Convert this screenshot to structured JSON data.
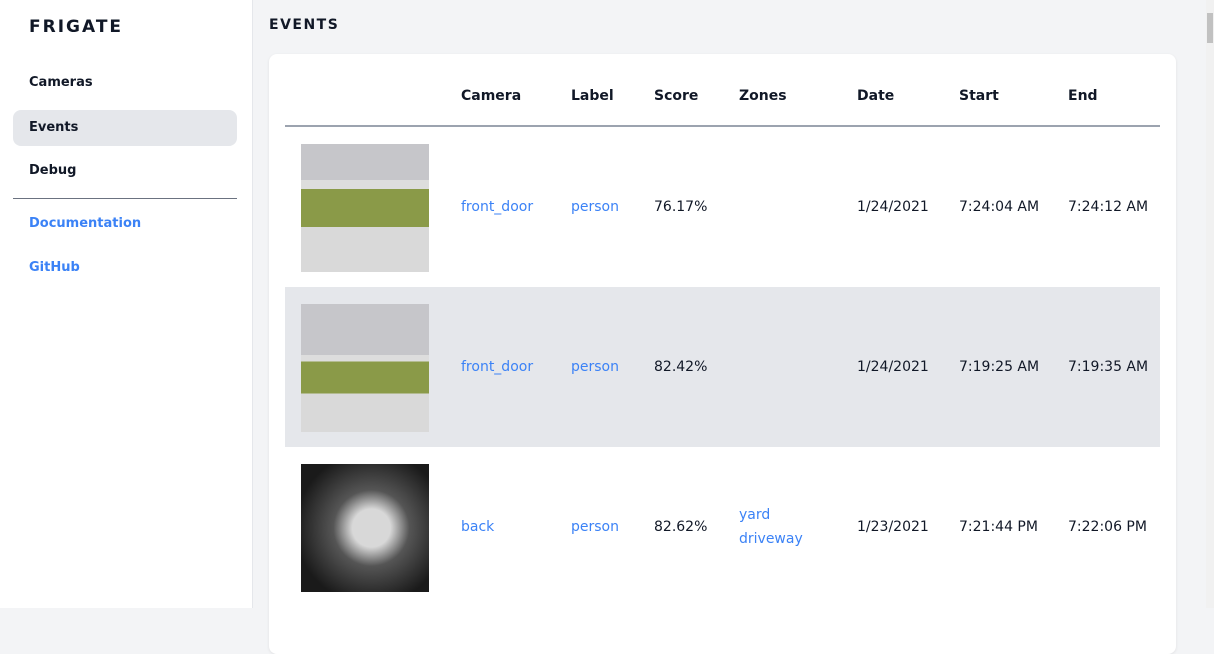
{
  "sidebar": {
    "brand": "FRIGATE",
    "items": [
      {
        "label": "Cameras"
      },
      {
        "label": "Events",
        "active": true
      },
      {
        "label": "Debug"
      }
    ],
    "links": [
      {
        "label": "Documentation"
      },
      {
        "label": "GitHub"
      }
    ]
  },
  "page": {
    "title": "EVENTS"
  },
  "table": {
    "columns": [
      "Camera",
      "Label",
      "Score",
      "Zones",
      "Date",
      "Start",
      "End"
    ],
    "rows": [
      {
        "camera": "front_door",
        "label": "person",
        "score": "76.17%",
        "zones": [
          "",
          ""
        ],
        "date": "1/24/2021",
        "start": "7:24:04 AM",
        "end": "7:24:12 AM"
      },
      {
        "camera": "front_door",
        "label": "person",
        "score": "82.42%",
        "zones": [
          "",
          ""
        ],
        "date": "1/24/2021",
        "start": "7:19:25 AM",
        "end": "7:19:35 AM"
      },
      {
        "camera": "back",
        "label": "person",
        "score": "82.62%",
        "zones": [
          "yard",
          "driveway"
        ],
        "date": "1/23/2021",
        "start": "7:21:44 PM",
        "end": "7:22:06 PM"
      }
    ]
  },
  "colors": {
    "accent": "#3b82f6",
    "active_bg": "#e5e7eb"
  }
}
